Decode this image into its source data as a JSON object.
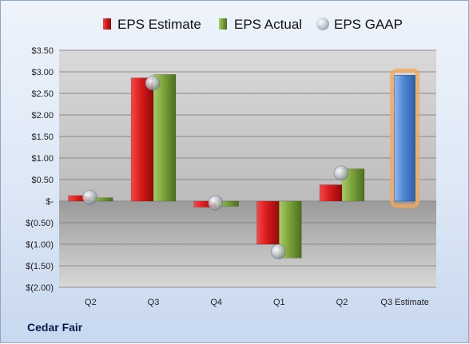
{
  "chart_data": {
    "type": "bar",
    "categories": [
      "Q2",
      "Q3",
      "Q4",
      "Q1",
      "Q2",
      "Q3 Estimate"
    ],
    "series": [
      {
        "name": "EPS Estimate",
        "values": [
          0.13,
          2.86,
          -0.14,
          -1.0,
          0.38,
          null
        ],
        "color": "#cc1111"
      },
      {
        "name": "EPS Actual",
        "values": [
          0.08,
          2.94,
          -0.12,
          -1.32,
          0.75,
          null
        ],
        "color": "#7aa33a"
      },
      {
        "name": "EPS GAAP",
        "values": [
          0.09,
          2.74,
          -0.04,
          -1.17,
          0.65,
          null
        ],
        "color": "#aab4c4"
      }
    ],
    "highlight": {
      "category": "Q3 Estimate",
      "value": 2.92,
      "color": "#4f86d6",
      "glow": "#f4a857"
    },
    "y_ticks": [
      "$3.50",
      "$3.00",
      "$2.50",
      "$2.00",
      "$1.50",
      "$1.00",
      "$0.50",
      "$-",
      "$(0.50)",
      "$(1.00)",
      "$(1.50)",
      "$(2.00)"
    ],
    "ylim": [
      -2.0,
      3.5
    ],
    "grid": true,
    "legend_position": "top"
  },
  "footer": {
    "company": "Cedar Fair"
  }
}
